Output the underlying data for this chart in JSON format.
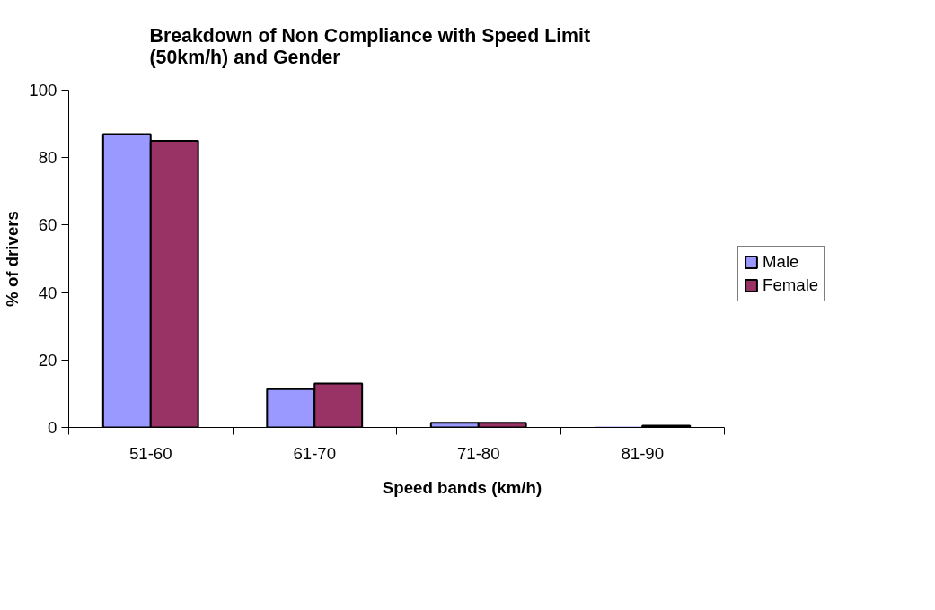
{
  "chart_data": {
    "type": "bar",
    "title": "Breakdown of Non Compliance with Speed Limit\n(50km/h) and Gender",
    "xlabel": "Speed bands (km/h)",
    "ylabel": "% of drivers",
    "categories": [
      "51-60",
      "61-70",
      "71-80",
      "81-90"
    ],
    "series": [
      {
        "name": "Male",
        "color": "#9999ff",
        "values": [
          87,
          11.4,
          1.4,
          0
        ]
      },
      {
        "name": "Female",
        "color": "#993366",
        "values": [
          85,
          13,
          1.4,
          0.5
        ]
      }
    ],
    "ylim": [
      0,
      100
    ],
    "yticks": [
      0,
      20,
      40,
      60,
      80,
      100
    ],
    "legend": "right"
  }
}
